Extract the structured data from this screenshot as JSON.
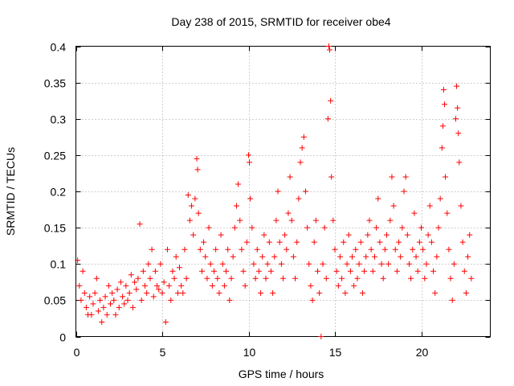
{
  "chart_data": {
    "type": "scatter",
    "title": "Day 238 of 2015, SRMTID for receiver obe4",
    "xlabel": "GPS time / hours",
    "ylabel": "SRMTID / TECUs",
    "xlim": [
      0,
      24
    ],
    "ylim": [
      0,
      0.4
    ],
    "x_ticks": [
      0,
      5,
      10,
      15,
      20
    ],
    "x_tick_labels": [
      "0",
      "5",
      "10",
      "15",
      "20"
    ],
    "y_ticks": [
      0,
      0.05,
      0.1,
      0.15,
      0.2,
      0.25,
      0.3,
      0.35,
      0.4
    ],
    "y_tick_labels": [
      "0",
      "0.05",
      "0.1",
      "0.15",
      "0.2",
      "0.25",
      "0.3",
      "0.35",
      "0.4"
    ],
    "grid": true,
    "marker": "+",
    "color": "#ff0000",
    "series": [
      {
        "name": "SRMTID",
        "points": [
          [
            0.1,
            0.105
          ],
          [
            0.2,
            0.07
          ],
          [
            0.3,
            0.05
          ],
          [
            0.4,
            0.09
          ],
          [
            0.5,
            0.06
          ],
          [
            0.6,
            0.04
          ],
          [
            0.7,
            0.03
          ],
          [
            0.8,
            0.055
          ],
          [
            0.9,
            0.03
          ],
          [
            1.0,
            0.045
          ],
          [
            1.1,
            0.06
          ],
          [
            1.2,
            0.08
          ],
          [
            1.3,
            0.035
          ],
          [
            1.4,
            0.05
          ],
          [
            1.5,
            0.02
          ],
          [
            1.6,
            0.04
          ],
          [
            1.7,
            0.055
          ],
          [
            1.8,
            0.03
          ],
          [
            1.9,
            0.07
          ],
          [
            2.0,
            0.045
          ],
          [
            2.1,
            0.06
          ],
          [
            2.2,
            0.05
          ],
          [
            2.3,
            0.03
          ],
          [
            2.4,
            0.065
          ],
          [
            2.5,
            0.04
          ],
          [
            2.6,
            0.075
          ],
          [
            2.7,
            0.055
          ],
          [
            2.8,
            0.045
          ],
          [
            2.9,
            0.07
          ],
          [
            3.0,
            0.05
          ],
          [
            3.1,
            0.06
          ],
          [
            3.2,
            0.085
          ],
          [
            3.3,
            0.04
          ],
          [
            3.4,
            0.075
          ],
          [
            3.5,
            0.065
          ],
          [
            3.6,
            0.08
          ],
          [
            3.7,
            0.155
          ],
          [
            3.8,
            0.05
          ],
          [
            3.9,
            0.09
          ],
          [
            4.0,
            0.07
          ],
          [
            4.1,
            0.06
          ],
          [
            4.2,
            0.1
          ],
          [
            4.3,
            0.08
          ],
          [
            4.4,
            0.12
          ],
          [
            4.5,
            0.055
          ],
          [
            4.6,
            0.09
          ],
          [
            4.7,
            0.07
          ],
          [
            4.8,
            0.065
          ],
          [
            4.9,
            0.1
          ],
          [
            5.0,
            0.06
          ],
          [
            5.1,
            0.075
          ],
          [
            5.2,
            0.02
          ],
          [
            5.3,
            0.12
          ],
          [
            5.4,
            0.07
          ],
          [
            5.5,
            0.05
          ],
          [
            5.6,
            0.09
          ],
          [
            5.7,
            0.08
          ],
          [
            5.8,
            0.11
          ],
          [
            5.9,
            0.06
          ],
          [
            6.0,
            0.095
          ],
          [
            6.1,
            0.07
          ],
          [
            6.2,
            0.06
          ],
          [
            6.3,
            0.12
          ],
          [
            6.4,
            0.08
          ],
          [
            6.5,
            0.195
          ],
          [
            6.6,
            0.16
          ],
          [
            6.7,
            0.18
          ],
          [
            6.8,
            0.14
          ],
          [
            6.9,
            0.19
          ],
          [
            7.0,
            0.245
          ],
          [
            7.05,
            0.23
          ],
          [
            7.1,
            0.17
          ],
          [
            7.2,
            0.12
          ],
          [
            7.3,
            0.09
          ],
          [
            7.4,
            0.13
          ],
          [
            7.5,
            0.11
          ],
          [
            7.6,
            0.08
          ],
          [
            7.7,
            0.15
          ],
          [
            7.8,
            0.1
          ],
          [
            7.9,
            0.07
          ],
          [
            8.0,
            0.09
          ],
          [
            8.1,
            0.12
          ],
          [
            8.2,
            0.08
          ],
          [
            8.3,
            0.06
          ],
          [
            8.4,
            0.14
          ],
          [
            8.5,
            0.1
          ],
          [
            8.6,
            0.07
          ],
          [
            8.7,
            0.09
          ],
          [
            8.8,
            0.12
          ],
          [
            8.9,
            0.05
          ],
          [
            9.0,
            0.08
          ],
          [
            9.1,
            0.11
          ],
          [
            9.2,
            0.15
          ],
          [
            9.3,
            0.18
          ],
          [
            9.4,
            0.21
          ],
          [
            9.5,
            0.16
          ],
          [
            9.6,
            0.12
          ],
          [
            9.7,
            0.09
          ],
          [
            9.8,
            0.07
          ],
          [
            9.9,
            0.13
          ],
          [
            10.0,
            0.25
          ],
          [
            10.05,
            0.24
          ],
          [
            10.1,
            0.19
          ],
          [
            10.2,
            0.15
          ],
          [
            10.3,
            0.1
          ],
          [
            10.4,
            0.08
          ],
          [
            10.5,
            0.12
          ],
          [
            10.6,
            0.09
          ],
          [
            10.7,
            0.06
          ],
          [
            10.8,
            0.11
          ],
          [
            10.9,
            0.14
          ],
          [
            11.0,
            0.08
          ],
          [
            11.1,
            0.1
          ],
          [
            11.2,
            0.13
          ],
          [
            11.3,
            0.09
          ],
          [
            11.4,
            0.06
          ],
          [
            11.5,
            0.11
          ],
          [
            11.6,
            0.16
          ],
          [
            11.7,
            0.2
          ],
          [
            11.8,
            0.13
          ],
          [
            11.9,
            0.1
          ],
          [
            12.0,
            0.08
          ],
          [
            12.1,
            0.14
          ],
          [
            12.2,
            0.12
          ],
          [
            12.3,
            0.17
          ],
          [
            12.4,
            0.22
          ],
          [
            12.5,
            0.16
          ],
          [
            12.6,
            0.11
          ],
          [
            12.7,
            0.08
          ],
          [
            12.8,
            0.13
          ],
          [
            12.9,
            0.19
          ],
          [
            13.0,
            0.24
          ],
          [
            13.1,
            0.26
          ],
          [
            13.2,
            0.275
          ],
          [
            13.3,
            0.2
          ],
          [
            13.4,
            0.15
          ],
          [
            13.5,
            0.1
          ],
          [
            13.6,
            0.07
          ],
          [
            13.7,
            0.05
          ],
          [
            13.8,
            0.13
          ],
          [
            13.9,
            0.16
          ],
          [
            14.0,
            0.09
          ],
          [
            14.1,
            0.06
          ],
          [
            14.2,
            0.0
          ],
          [
            14.3,
            0.1
          ],
          [
            14.4,
            0.15
          ],
          [
            14.5,
            0.08
          ],
          [
            14.6,
            0.3
          ],
          [
            14.65,
            0.4
          ],
          [
            14.7,
            0.395
          ],
          [
            14.75,
            0.325
          ],
          [
            14.8,
            0.22
          ],
          [
            14.9,
            0.16
          ],
          [
            15.0,
            0.12
          ],
          [
            15.1,
            0.09
          ],
          [
            15.2,
            0.07
          ],
          [
            15.3,
            0.11
          ],
          [
            15.4,
            0.08
          ],
          [
            15.5,
            0.13
          ],
          [
            15.6,
            0.06
          ],
          [
            15.7,
            0.1
          ],
          [
            15.8,
            0.14
          ],
          [
            15.9,
            0.09
          ],
          [
            16.0,
            0.11
          ],
          [
            16.1,
            0.07
          ],
          [
            16.2,
            0.12
          ],
          [
            16.3,
            0.08
          ],
          [
            16.4,
            0.1
          ],
          [
            16.5,
            0.13
          ],
          [
            16.6,
            0.06
          ],
          [
            16.7,
            0.09
          ],
          [
            16.8,
            0.11
          ],
          [
            16.9,
            0.14
          ],
          [
            17.0,
            0.16
          ],
          [
            17.1,
            0.12
          ],
          [
            17.2,
            0.09
          ],
          [
            17.3,
            0.11
          ],
          [
            17.4,
            0.15
          ],
          [
            17.5,
            0.19
          ],
          [
            17.6,
            0.13
          ],
          [
            17.7,
            0.1
          ],
          [
            17.8,
            0.08
          ],
          [
            17.9,
            0.12
          ],
          [
            18.0,
            0.14
          ],
          [
            18.1,
            0.1
          ],
          [
            18.2,
            0.16
          ],
          [
            18.3,
            0.22
          ],
          [
            18.4,
            0.18
          ],
          [
            18.5,
            0.12
          ],
          [
            18.6,
            0.09
          ],
          [
            18.7,
            0.13
          ],
          [
            18.8,
            0.11
          ],
          [
            18.9,
            0.15
          ],
          [
            19.0,
            0.2
          ],
          [
            19.1,
            0.22
          ],
          [
            19.2,
            0.14
          ],
          [
            19.3,
            0.1
          ],
          [
            19.4,
            0.08
          ],
          [
            19.5,
            0.12
          ],
          [
            19.6,
            0.17
          ],
          [
            19.7,
            0.11
          ],
          [
            19.8,
            0.09
          ],
          [
            19.9,
            0.13
          ],
          [
            20.0,
            0.15
          ],
          [
            20.1,
            0.12
          ],
          [
            20.2,
            0.08
          ],
          [
            20.3,
            0.1
          ],
          [
            20.4,
            0.14
          ],
          [
            20.5,
            0.18
          ],
          [
            20.6,
            0.13
          ],
          [
            20.7,
            0.09
          ],
          [
            20.8,
            0.06
          ],
          [
            20.9,
            0.11
          ],
          [
            21.0,
            0.15
          ],
          [
            21.1,
            0.19
          ],
          [
            21.2,
            0.26
          ],
          [
            21.25,
            0.29
          ],
          [
            21.3,
            0.34
          ],
          [
            21.35,
            0.32
          ],
          [
            21.4,
            0.22
          ],
          [
            21.5,
            0.17
          ],
          [
            21.6,
            0.12
          ],
          [
            21.7,
            0.08
          ],
          [
            21.8,
            0.05
          ],
          [
            21.9,
            0.1
          ],
          [
            22.0,
            0.3
          ],
          [
            22.05,
            0.345
          ],
          [
            22.1,
            0.315
          ],
          [
            22.15,
            0.28
          ],
          [
            22.2,
            0.24
          ],
          [
            22.3,
            0.18
          ],
          [
            22.4,
            0.13
          ],
          [
            22.5,
            0.09
          ],
          [
            22.6,
            0.06
          ],
          [
            22.7,
            0.11
          ],
          [
            22.8,
            0.14
          ],
          [
            22.9,
            0.08
          ]
        ]
      }
    ]
  }
}
